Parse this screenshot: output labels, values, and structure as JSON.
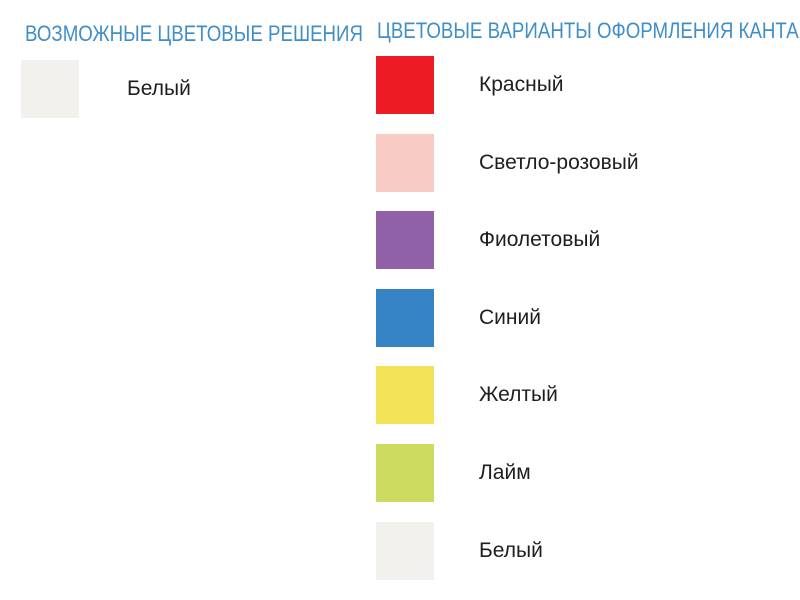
{
  "theme": {
    "background": "#ffffff",
    "heading_color": "#3f8ec8",
    "label_color": "#1e1e1e"
  },
  "left_section": {
    "title": "ВОЗМОЖНЫЕ ЦВЕТОВЫЕ РЕШЕНИЯ",
    "swatches": [
      {
        "label": "Белый",
        "hex": "#f2f1ee"
      }
    ]
  },
  "right_section": {
    "title": "ЦВЕТОВЫЕ ВАРИАНТЫ ОФОРМЛЕНИЯ КАНТА",
    "swatches": [
      {
        "label": "Красный",
        "hex": "#ed1c24"
      },
      {
        "label": "Светло-розовый",
        "hex": "#f8cbc5"
      },
      {
        "label": "Фиолетовый",
        "hex": "#9061a7"
      },
      {
        "label": "Синий",
        "hex": "#3583c4"
      },
      {
        "label": "Желтый",
        "hex": "#f2e356"
      },
      {
        "label": "Лайм",
        "hex": "#ccda60"
      },
      {
        "label": "Белый",
        "hex": "#f2f1ee"
      }
    ]
  }
}
